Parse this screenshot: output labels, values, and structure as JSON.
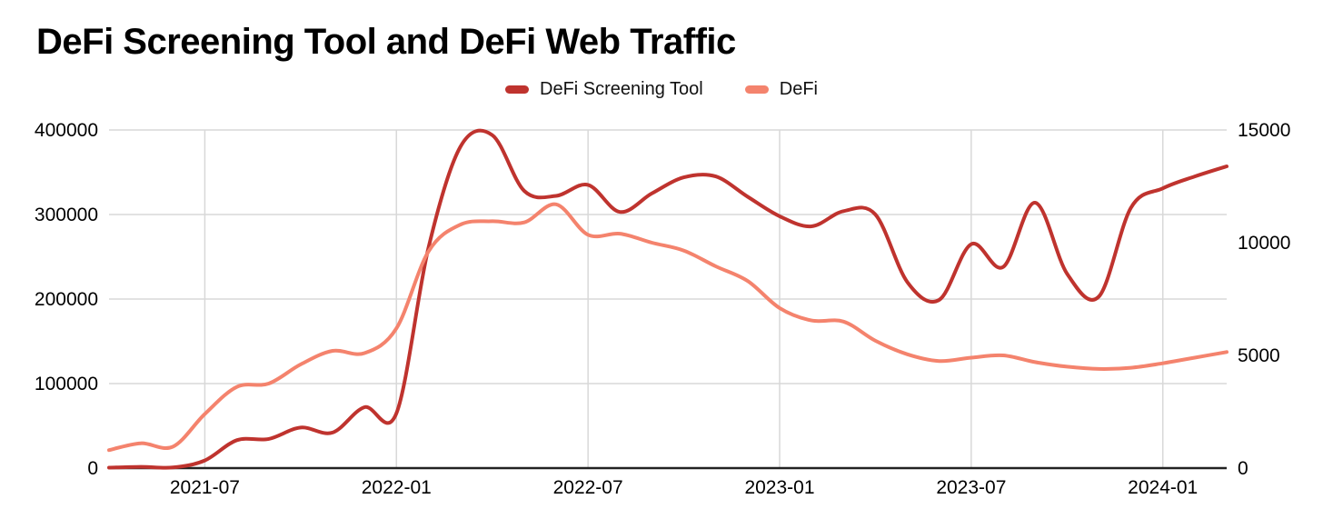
{
  "title": "DeFi Screening Tool and DeFi Web Traffic",
  "legend": {
    "items": [
      {
        "label": "DeFi Screening Tool",
        "color": "#bf332e"
      },
      {
        "label": "DeFi",
        "color": "#f4836d"
      }
    ]
  },
  "colors": {
    "background": "#ffffff",
    "grid": "#d8d8d8",
    "axis": "#222222",
    "text": "#000000",
    "series_dark_red": "#bf332e",
    "series_salmon": "#f4836d"
  },
  "chart_data": {
    "type": "line",
    "smooth": true,
    "grid": true,
    "legend_position": "top",
    "title": "DeFi Screening Tool and DeFi Web Traffic",
    "x": [
      "2021-04",
      "2021-05",
      "2021-06",
      "2021-07",
      "2021-08",
      "2021-09",
      "2021-10",
      "2021-11",
      "2021-12",
      "2022-01",
      "2022-02",
      "2022-03",
      "2022-04",
      "2022-05",
      "2022-06",
      "2022-07",
      "2022-08",
      "2022-09",
      "2022-10",
      "2022-11",
      "2022-12",
      "2023-01",
      "2023-02",
      "2023-03",
      "2023-04",
      "2023-05",
      "2023-06",
      "2023-07",
      "2023-08",
      "2023-09",
      "2023-10",
      "2023-11",
      "2023-12",
      "2024-01",
      "2024-02",
      "2024-03"
    ],
    "x_ticks": [
      "2021-07",
      "2022-01",
      "2022-07",
      "2023-01",
      "2023-07",
      "2024-01"
    ],
    "left_axis": {
      "max": 400000,
      "ticks": [
        0,
        100000,
        200000,
        300000,
        400000
      ]
    },
    "right_axis": {
      "max": 15000,
      "ticks": [
        0,
        5000,
        10000,
        15000
      ]
    },
    "series": [
      {
        "name": "DeFi Screening Tool",
        "axis": "left",
        "color": "#bf332e",
        "values": [
          500,
          1500,
          800,
          9000,
          33000,
          34500,
          48000,
          42000,
          72000,
          65000,
          260000,
          380000,
          394000,
          328000,
          322000,
          335000,
          303000,
          325000,
          344000,
          345000,
          321000,
          298000,
          286000,
          304000,
          300000,
          220000,
          199000,
          265000,
          238000,
          314000,
          230000,
          203000,
          308000,
          331000,
          345000,
          357000
        ]
      },
      {
        "name": "DeFi",
        "axis": "right",
        "color": "#f4836d",
        "values": [
          800,
          1100,
          950,
          2400,
          3600,
          3750,
          4600,
          5200,
          5100,
          6200,
          9600,
          10800,
          10950,
          10900,
          11700,
          10350,
          10400,
          10000,
          9650,
          8950,
          8300,
          7100,
          6550,
          6500,
          5650,
          5050,
          4750,
          4900,
          5000,
          4700,
          4500,
          4400,
          4450,
          4650,
          4900,
          5150
        ]
      }
    ]
  }
}
